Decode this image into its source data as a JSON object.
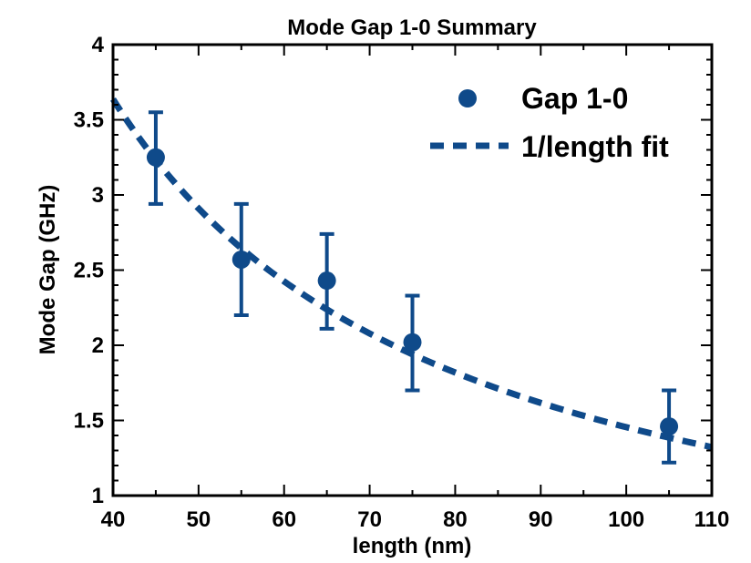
{
  "chart_data": {
    "type": "scatter",
    "title": "Mode Gap 1-0 Summary",
    "xlabel": "length (nm)",
    "ylabel": "Mode Gap (GHz)",
    "xlim": [
      40,
      110
    ],
    "ylim": [
      1,
      4
    ],
    "x_ticks": [
      40,
      50,
      60,
      70,
      80,
      90,
      100,
      110
    ],
    "y_ticks": [
      1,
      1.5,
      2,
      2.5,
      3,
      3.5,
      4
    ],
    "x_tick_labels": [
      "40",
      "50",
      "60",
      "70",
      "80",
      "90",
      "100",
      "110"
    ],
    "y_tick_labels": [
      "1",
      "1.5",
      "2",
      "2.5",
      "3",
      "3.5",
      "4"
    ],
    "grid": false,
    "legend_position": "top-right",
    "color": "#0f4a8a",
    "series": [
      {
        "name": "Gap 1-0",
        "kind": "points-with-error-bars",
        "x": [
          45,
          55,
          65,
          75,
          105
        ],
        "y": [
          3.25,
          2.57,
          2.43,
          2.02,
          1.46
        ],
        "yerr_low": [
          2.94,
          2.2,
          2.11,
          1.7,
          1.22
        ],
        "yerr_high": [
          3.55,
          2.94,
          2.74,
          2.33,
          1.7
        ]
      },
      {
        "name": "1/length fit",
        "kind": "dashed-line",
        "function": "y = a / x",
        "a": 145.5
      }
    ]
  }
}
